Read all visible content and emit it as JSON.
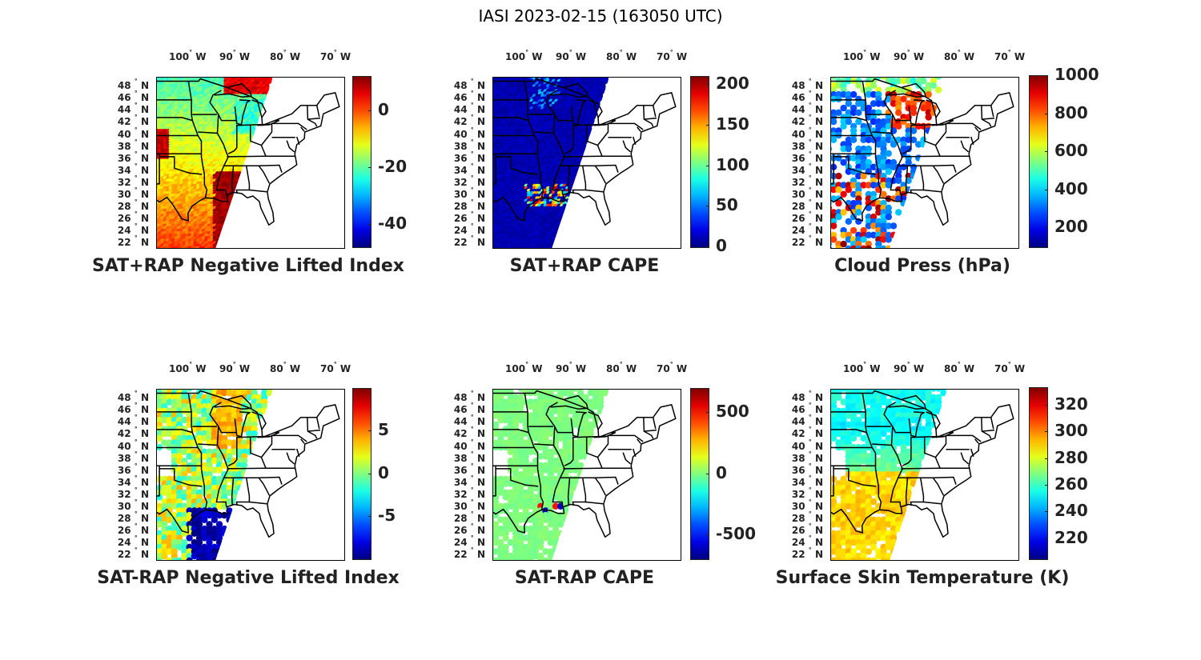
{
  "title": "IASI 2023-02-15 (163050 UTC)",
  "lon_labels": [
    "100",
    "90",
    "80",
    "70"
  ],
  "lon_suffix": "W",
  "lat_labels": [
    "48",
    "46",
    "44",
    "42",
    "40",
    "38",
    "36",
    "34",
    "32",
    "30",
    "28",
    "26",
    "24",
    "22"
  ],
  "lat_suffix": "N",
  "degree_symbol": "°",
  "colormap": "jet",
  "panels": [
    {
      "id": "sat-rap-plus-neg-li",
      "title": "SAT+RAP Negative Lifted Index",
      "colorbar_ticks": [
        "0",
        "-20",
        "-40"
      ],
      "colorbar_range": [
        -48,
        12
      ],
      "tick_values": [
        0,
        -20,
        -40
      ],
      "field": "swath-warm-south"
    },
    {
      "id": "sat-rap-plus-cape",
      "title": "SAT+RAP CAPE",
      "colorbar_ticks": [
        "200",
        "150",
        "100",
        "50",
        "0"
      ],
      "colorbar_range": [
        0,
        210
      ],
      "tick_values": [
        200,
        150,
        100,
        50,
        0
      ],
      "field": "swath-low"
    },
    {
      "id": "cloud-press",
      "title": "Cloud Press (hPa)",
      "colorbar_ticks": [
        "1000",
        "800",
        "600",
        "400",
        "200"
      ],
      "colorbar_range": [
        100,
        1000
      ],
      "tick_values": [
        1000,
        800,
        600,
        400,
        200
      ],
      "field": "clouds"
    },
    {
      "id": "sat-minus-rap-neg-li",
      "title": "SAT-RAP Negative Lifted Index",
      "colorbar_ticks": [
        "5",
        "0",
        "-5"
      ],
      "colorbar_range": [
        -10,
        10
      ],
      "tick_values": [
        5,
        0,
        -5
      ],
      "field": "diff-li"
    },
    {
      "id": "sat-minus-rap-cape",
      "title": "SAT-RAP CAPE",
      "colorbar_ticks": [
        "500",
        "0",
        "-500"
      ],
      "colorbar_range": [
        -700,
        700
      ],
      "tick_values": [
        500,
        0,
        -500
      ],
      "field": "diff-cape"
    },
    {
      "id": "surface-skin-temp",
      "title": "Surface Skin Temperature (K)",
      "colorbar_ticks": [
        "320",
        "300",
        "280",
        "260",
        "240",
        "220"
      ],
      "colorbar_range": [
        205,
        333
      ],
      "tick_values": [
        320,
        300,
        280,
        260,
        240,
        220
      ],
      "field": "skin-temp"
    }
  ]
}
